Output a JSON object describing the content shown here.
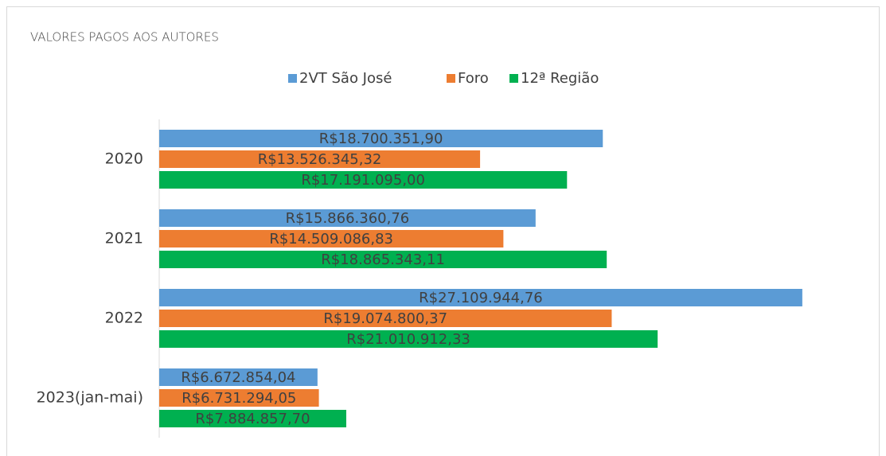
{
  "chart_data": {
    "type": "barh",
    "title": "VALORES PAGOS AOS AUTORES",
    "categories": [
      "2020",
      "2021",
      "2022",
      "2023(jan-mai)"
    ],
    "series": [
      {
        "name": "2VT São José",
        "color": "#5b9bd5",
        "values": [
          18700351.9,
          15866360.76,
          27109944.76,
          6672854.04
        ],
        "value_labels": [
          "R$18.700.351,90",
          "R$15.866.360,76",
          "R$27.109.944,76",
          "R$6.672.854,04"
        ]
      },
      {
        "name": "Foro",
        "color": "#ed7d31",
        "values": [
          13526345.32,
          14509086.83,
          19074800.37,
          6731294.05
        ],
        "value_labels": [
          "R$13.526.345,32",
          "R$14.509.086,83",
          "R$19.074.800,37",
          "R$6.731.294,05"
        ]
      },
      {
        "name": "12ª Região",
        "color": "#00b050",
        "values": [
          17191095.0,
          18865343.11,
          21010912.33,
          7884857.7
        ],
        "value_labels": [
          "R$17.191.095,00",
          "R$18.865.343,11",
          "R$21.010.912,33",
          "R$7.884.857,70"
        ]
      }
    ],
    "xlim": [
      0,
      30000000
    ],
    "legend": "top"
  }
}
